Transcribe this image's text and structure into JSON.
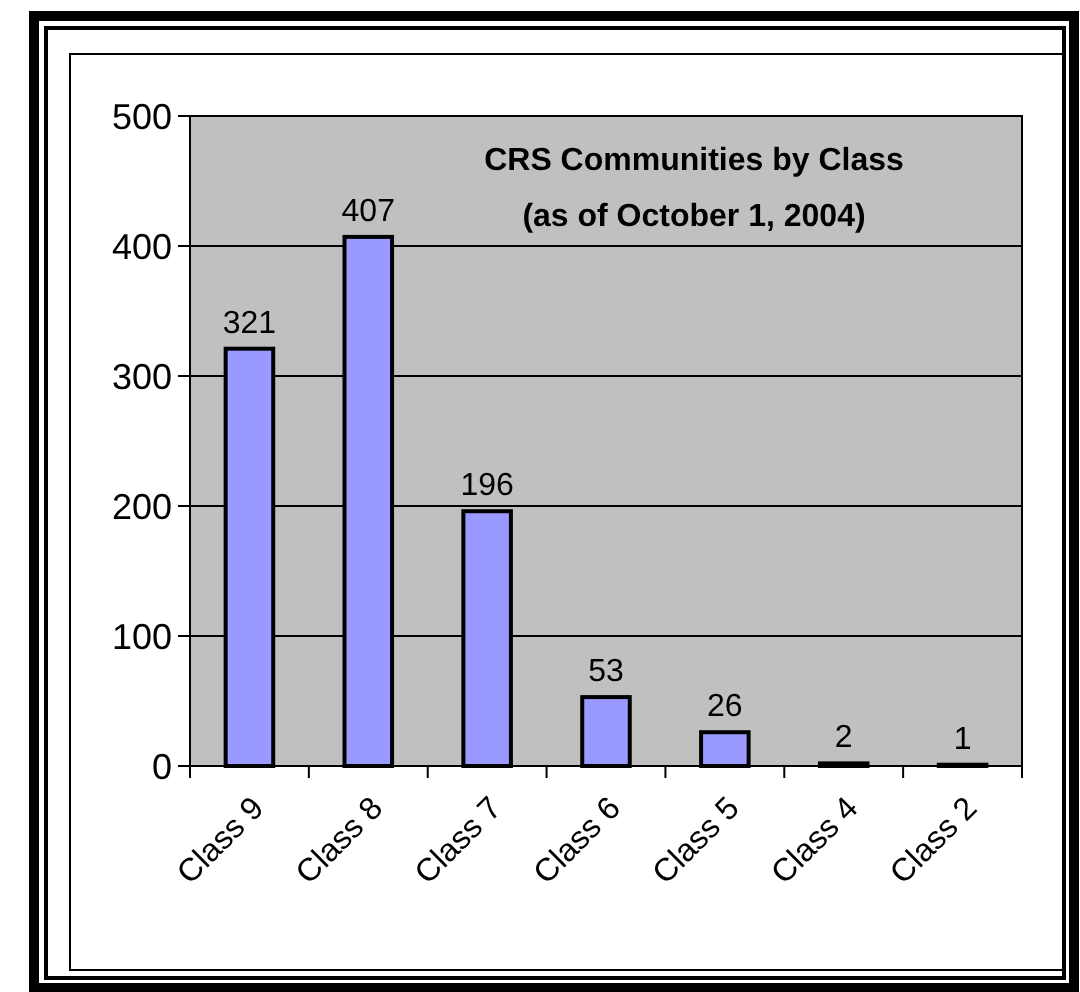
{
  "chart_data": {
    "type": "bar",
    "title": "CRS Communities by Class",
    "subtitle": "(as of October 1, 2004)",
    "categories": [
      "Class 9",
      "Class 8",
      "Class 7",
      "Class 6",
      "Class 5",
      "Class 4",
      "Class 2"
    ],
    "values": [
      321,
      407,
      196,
      53,
      26,
      2,
      1
    ],
    "color": "#9999ff",
    "ylim": [
      0,
      500
    ],
    "yticks": [
      0,
      100,
      200,
      300,
      400,
      500
    ],
    "grid": "y",
    "data_labels": true
  }
}
